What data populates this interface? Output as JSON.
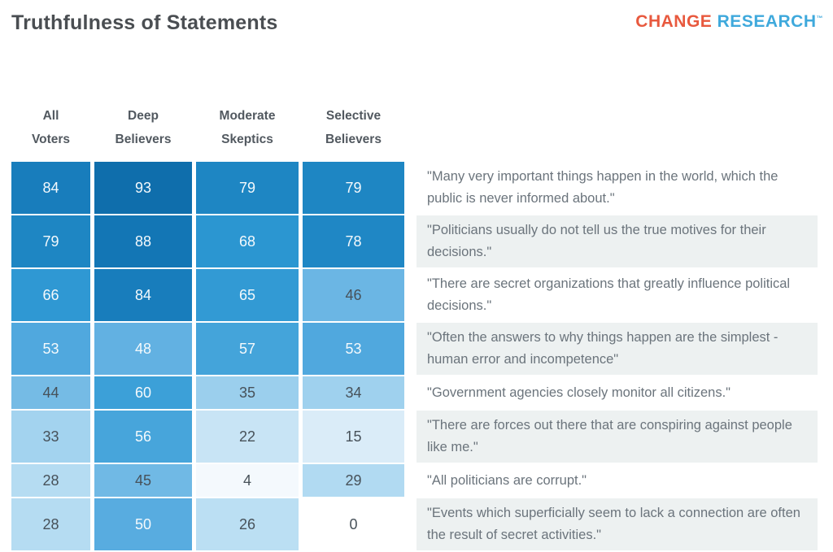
{
  "header": {
    "title": "Truthfulness of Statements",
    "brand": {
      "first": "CHANGE",
      "second": "RESEARCH",
      "tm": "™",
      "first_color": "#e8593e",
      "second_color": "#3fa9dc"
    }
  },
  "chart_data": {
    "type": "heatmap",
    "title": "Truthfulness of Statements",
    "columns": [
      "All Voters",
      "Deep Believers",
      "Moderate Skeptics",
      "Selective Believers"
    ],
    "rows": [
      {
        "statement": "\"Many very important things happen in the world, which the public is never informed about.\"",
        "values": [
          84,
          93,
          79,
          79
        ]
      },
      {
        "statement": "\"Politicians usually do not tell us the true motives for their decisions.\"",
        "values": [
          79,
          88,
          68,
          78
        ]
      },
      {
        "statement": "\"There are secret organizations that greatly influence political decisions.\"",
        "values": [
          66,
          84,
          65,
          46
        ]
      },
      {
        "statement": "\"Often the answers to why things happen are the simplest - human error and incompetence\"",
        "values": [
          53,
          48,
          57,
          53
        ]
      },
      {
        "statement": "\"Government agencies closely monitor all citizens.\"",
        "values": [
          44,
          60,
          35,
          34
        ]
      },
      {
        "statement": "\"There are forces out there that are conspiring against people like me.\"",
        "values": [
          33,
          56,
          22,
          15
        ]
      },
      {
        "statement": "\"All politicians are corrupt.\"",
        "values": [
          28,
          45,
          4,
          29
        ]
      },
      {
        "statement": "\"Events which superficially seem to lack a connection are often the result of secret activities.\"",
        "values": [
          28,
          50,
          26,
          0
        ]
      }
    ],
    "value_range": [
      0,
      100
    ],
    "color_scale": {
      "stops": [
        [
          0,
          "#ffffff"
        ],
        [
          10,
          "#e4f1f9"
        ],
        [
          20,
          "#cfe7f6"
        ],
        [
          30,
          "#aed9f1"
        ],
        [
          40,
          "#88c5e9"
        ],
        [
          50,
          "#58ace0"
        ],
        [
          60,
          "#3ca0d8"
        ],
        [
          70,
          "#2793cf"
        ],
        [
          80,
          "#1d84c2"
        ],
        [
          90,
          "#1173b2"
        ],
        [
          100,
          "#0b629f"
        ]
      ]
    },
    "value_text": {
      "light": "#f4f9fc",
      "dark": "#475159",
      "light_text_min": 48
    },
    "statement_alt_bg": "#edf1f1",
    "statement_bg": "#ffffff",
    "legend": "none",
    "grid": "off"
  }
}
